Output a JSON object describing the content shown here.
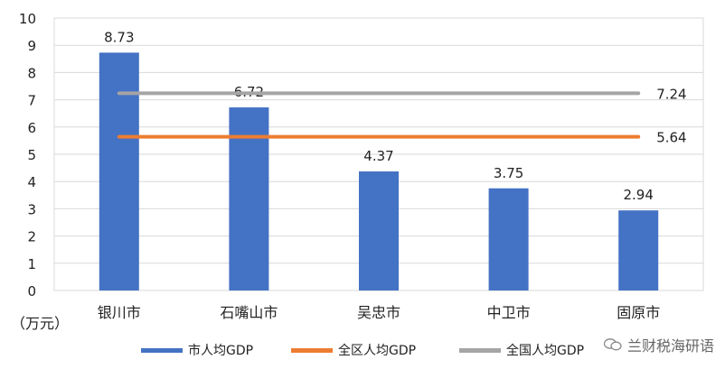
{
  "chart_data": {
    "type": "bar",
    "categories": [
      "银川市",
      "石嘴山市",
      "吴忠市",
      "中卫市",
      "固原市"
    ],
    "series": [
      {
        "name": "市人均GDP",
        "kind": "bar",
        "values": [
          8.73,
          6.72,
          4.37,
          3.75,
          2.94
        ],
        "color": "#4472C4"
      },
      {
        "name": "全区人均GDP",
        "kind": "line",
        "values": [
          5.64,
          5.64,
          5.64,
          5.64,
          5.64
        ],
        "color": "#ED7D31",
        "end_label": "5.64"
      },
      {
        "name": "全国人均GDP",
        "kind": "line",
        "values": [
          7.24,
          7.24,
          7.24,
          7.24,
          7.24
        ],
        "color": "#A5A5A5",
        "end_label": "7.24"
      }
    ],
    "bar_labels": [
      "8.73",
      "6.72",
      "4.37",
      "3.75",
      "2.94"
    ],
    "yticks": [
      0,
      1,
      2,
      3,
      4,
      5,
      6,
      7,
      8,
      9,
      10
    ],
    "ylim": [
      0,
      10
    ],
    "ylabel": "（万元）",
    "grid": true,
    "legend": "bottom"
  },
  "watermark": {
    "text": "兰财税海研语",
    "icon": "wechat-icon"
  }
}
